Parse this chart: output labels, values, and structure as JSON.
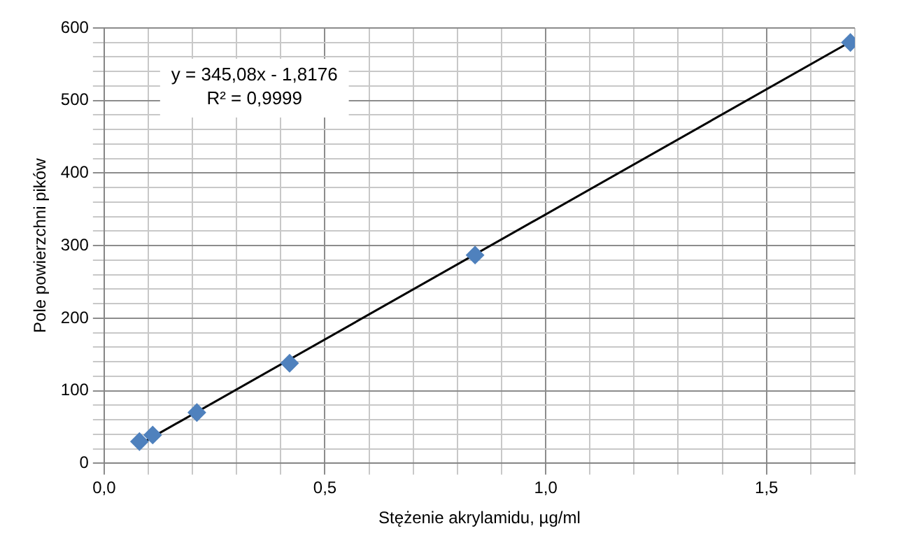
{
  "chart_data": {
    "type": "scatter",
    "xlabel": "Stężenie akrylamidu, µg/ml",
    "ylabel": "Pole powierzchni pików",
    "x": [
      0.08,
      0.11,
      0.21,
      0.42,
      0.84,
      1.69
    ],
    "series": [
      {
        "type": "scatter",
        "color": "#4f81bd",
        "marker": "diamond",
        "values": [
          30,
          39,
          70,
          138,
          287,
          580
        ]
      },
      {
        "type": "line",
        "color": "#000000",
        "marker": "none",
        "x": [
          0.08,
          1.69
        ],
        "values": [
          26,
          581
        ]
      }
    ],
    "xlim": [
      0,
      1.7
    ],
    "xticks": [
      {
        "value": 0,
        "label": "0,0"
      },
      {
        "value": 0.1,
        "label": null
      },
      {
        "value": 0.2,
        "label": null
      },
      {
        "value": 0.3,
        "label": null
      },
      {
        "value": 0.4,
        "label": null
      },
      {
        "value": 0.5,
        "label": "0,5"
      },
      {
        "value": 0.6,
        "label": null
      },
      {
        "value": 0.7,
        "label": null
      },
      {
        "value": 0.8,
        "label": null
      },
      {
        "value": 0.9,
        "label": null
      },
      {
        "value": 1,
        "label": "1,0"
      },
      {
        "value": 1.1,
        "label": null
      },
      {
        "value": 1.2,
        "label": null
      },
      {
        "value": 1.3,
        "label": null
      },
      {
        "value": 1.4,
        "label": null
      },
      {
        "value": 1.5,
        "label": "1,5"
      },
      {
        "value": 1.6,
        "label": null
      },
      {
        "value": 1.7,
        "label": null
      }
    ],
    "ylim": [
      0,
      600
    ],
    "yticks": [
      0,
      {
        "value": 20,
        "label": null
      },
      {
        "value": 40,
        "label": null
      },
      {
        "value": 60,
        "label": null
      },
      {
        "value": 80,
        "label": null
      },
      100,
      {
        "value": 120,
        "label": null
      },
      {
        "value": 140,
        "label": null
      },
      {
        "value": 160,
        "label": null
      },
      {
        "value": 180,
        "label": null
      },
      200,
      {
        "value": 220,
        "label": null
      },
      {
        "value": 240,
        "label": null
      },
      {
        "value": 260,
        "label": null
      },
      {
        "value": 280,
        "label": null
      },
      300,
      {
        "value": 320,
        "label": null
      },
      {
        "value": 340,
        "label": null
      },
      {
        "value": 360,
        "label": null
      },
      {
        "value": 380,
        "label": null
      },
      400,
      {
        "value": 420,
        "label": null
      },
      {
        "value": 440,
        "label": null
      },
      {
        "value": 460,
        "label": null
      },
      {
        "value": 480,
        "label": null
      },
      500,
      {
        "value": 520,
        "label": null
      },
      {
        "value": 540,
        "label": null
      },
      {
        "value": 560,
        "label": null
      },
      {
        "value": 580,
        "label": null
      },
      600
    ],
    "annotations": [
      "y = 345,08x - 1,8176",
      "R² = 0,9999"
    ],
    "grid": true,
    "legend": false
  }
}
